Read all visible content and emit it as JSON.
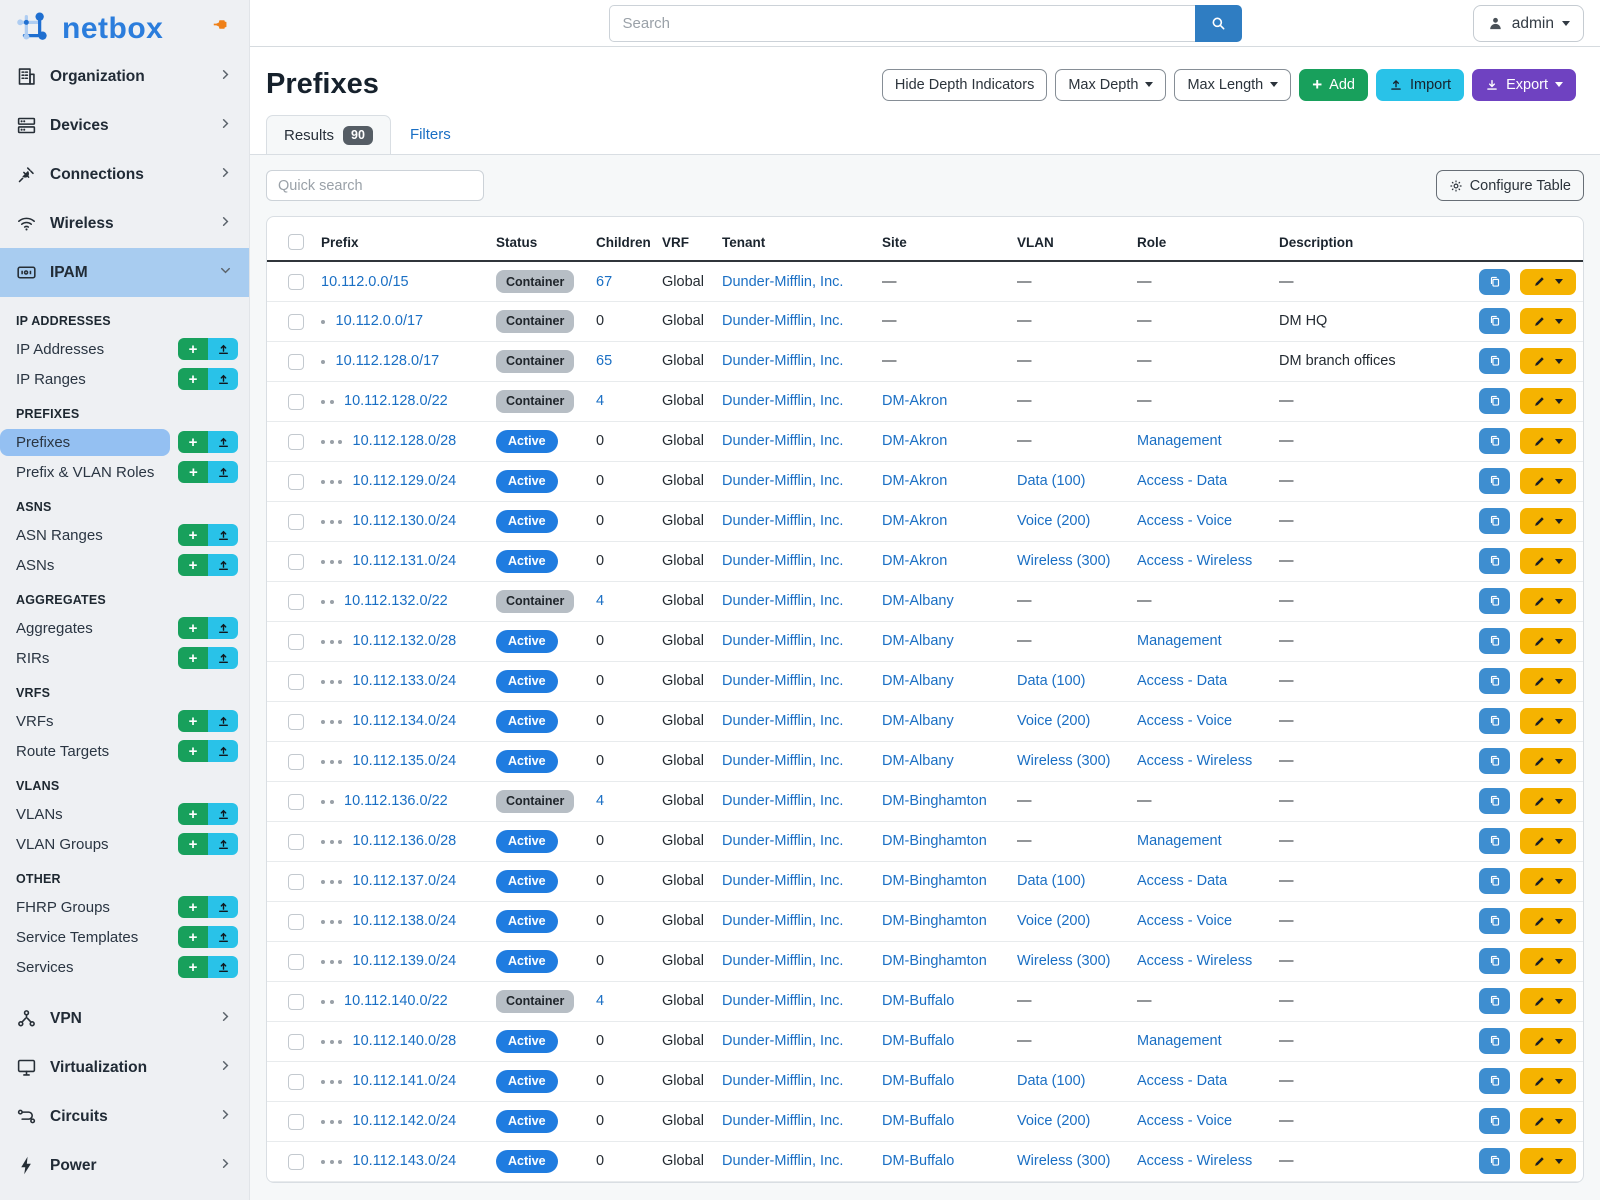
{
  "colors": {
    "link_blue": "#1a6fc4",
    "active_badge": "#1f7ce0",
    "container_badge": "#b7bec5",
    "add_green": "#18a05c",
    "import_cyan": "#29c2e8",
    "export_purple": "#6f42c1",
    "edit_yellow": "#f5b301",
    "copy_blue": "#3e8ed0",
    "sidebar_highlight": "#a8ccf0"
  },
  "topbar": {
    "search_placeholder": "Search",
    "user_label": "admin"
  },
  "sidebar": {
    "brand": "netbox",
    "top_items": [
      {
        "label": "Organization",
        "icon": "building-icon"
      },
      {
        "label": "Devices",
        "icon": "server-icon"
      },
      {
        "label": "Connections",
        "icon": "plug-icon"
      },
      {
        "label": "Wireless",
        "icon": "wifi-icon"
      }
    ],
    "ipam": {
      "label": "IPAM",
      "icon": "ipam-icon"
    },
    "sections": [
      {
        "title": "IP ADDRESSES",
        "items": [
          {
            "label": "IP Addresses"
          },
          {
            "label": "IP Ranges"
          }
        ]
      },
      {
        "title": "PREFIXES",
        "items": [
          {
            "label": "Prefixes",
            "active": true
          },
          {
            "label": "Prefix & VLAN Roles"
          }
        ]
      },
      {
        "title": "ASNS",
        "items": [
          {
            "label": "ASN Ranges"
          },
          {
            "label": "ASNs"
          }
        ]
      },
      {
        "title": "AGGREGATES",
        "items": [
          {
            "label": "Aggregates"
          },
          {
            "label": "RIRs"
          }
        ]
      },
      {
        "title": "VRFS",
        "items": [
          {
            "label": "VRFs"
          },
          {
            "label": "Route Targets"
          }
        ]
      },
      {
        "title": "VLANS",
        "items": [
          {
            "label": "VLANs"
          },
          {
            "label": "VLAN Groups"
          }
        ]
      },
      {
        "title": "OTHER",
        "items": [
          {
            "label": "FHRP Groups"
          },
          {
            "label": "Service Templates"
          },
          {
            "label": "Services"
          }
        ]
      }
    ],
    "bottom_items": [
      {
        "label": "VPN",
        "icon": "vpn-icon"
      },
      {
        "label": "Virtualization",
        "icon": "monitor-icon"
      },
      {
        "label": "Circuits",
        "icon": "circuit-icon"
      },
      {
        "label": "Power",
        "icon": "power-icon"
      }
    ]
  },
  "page": {
    "title": "Prefixes",
    "toolbar": {
      "hide_depth": "Hide Depth Indicators",
      "max_depth": "Max Depth",
      "max_length": "Max Length",
      "add": "Add",
      "import": "Import",
      "export": "Export"
    },
    "tabs": {
      "results": "Results",
      "results_count": "90",
      "filters": "Filters"
    },
    "quick_search_placeholder": "Quick search",
    "configure_table": "Configure Table"
  },
  "table": {
    "columns": [
      "Prefix",
      "Status",
      "Children",
      "VRF",
      "Tenant",
      "Site",
      "VLAN",
      "Role",
      "Description"
    ],
    "rows": [
      {
        "prefix": "10.112.0.0/15",
        "depth": 0,
        "status": "Container",
        "children": "67",
        "vrf": "Global",
        "tenant": "Dunder-Mifflin, Inc.",
        "site": "—",
        "vlan": "—",
        "role": "—",
        "description": "—"
      },
      {
        "prefix": "10.112.0.0/17",
        "depth": 1,
        "status": "Container",
        "children": "0",
        "vrf": "Global",
        "tenant": "Dunder-Mifflin, Inc.",
        "site": "—",
        "vlan": "—",
        "role": "—",
        "description": "DM HQ"
      },
      {
        "prefix": "10.112.128.0/17",
        "depth": 1,
        "status": "Container",
        "children": "65",
        "vrf": "Global",
        "tenant": "Dunder-Mifflin, Inc.",
        "site": "—",
        "vlan": "—",
        "role": "—",
        "description": "DM branch offices"
      },
      {
        "prefix": "10.112.128.0/22",
        "depth": 2,
        "status": "Container",
        "children": "4",
        "vrf": "Global",
        "tenant": "Dunder-Mifflin, Inc.",
        "site": "DM-Akron",
        "vlan": "—",
        "role": "—",
        "description": "—"
      },
      {
        "prefix": "10.112.128.0/28",
        "depth": 3,
        "status": "Active",
        "children": "0",
        "vrf": "Global",
        "tenant": "Dunder-Mifflin, Inc.",
        "site": "DM-Akron",
        "vlan": "—",
        "role": "Management",
        "description": "—"
      },
      {
        "prefix": "10.112.129.0/24",
        "depth": 3,
        "status": "Active",
        "children": "0",
        "vrf": "Global",
        "tenant": "Dunder-Mifflin, Inc.",
        "site": "DM-Akron",
        "vlan": "Data (100)",
        "role": "Access - Data",
        "description": "—"
      },
      {
        "prefix": "10.112.130.0/24",
        "depth": 3,
        "status": "Active",
        "children": "0",
        "vrf": "Global",
        "tenant": "Dunder-Mifflin, Inc.",
        "site": "DM-Akron",
        "vlan": "Voice (200)",
        "role": "Access - Voice",
        "description": "—"
      },
      {
        "prefix": "10.112.131.0/24",
        "depth": 3,
        "status": "Active",
        "children": "0",
        "vrf": "Global",
        "tenant": "Dunder-Mifflin, Inc.",
        "site": "DM-Akron",
        "vlan": "Wireless (300)",
        "role": "Access - Wireless",
        "description": "—"
      },
      {
        "prefix": "10.112.132.0/22",
        "depth": 2,
        "status": "Container",
        "children": "4",
        "vrf": "Global",
        "tenant": "Dunder-Mifflin, Inc.",
        "site": "DM-Albany",
        "vlan": "—",
        "role": "—",
        "description": "—"
      },
      {
        "prefix": "10.112.132.0/28",
        "depth": 3,
        "status": "Active",
        "children": "0",
        "vrf": "Global",
        "tenant": "Dunder-Mifflin, Inc.",
        "site": "DM-Albany",
        "vlan": "—",
        "role": "Management",
        "description": "—"
      },
      {
        "prefix": "10.112.133.0/24",
        "depth": 3,
        "status": "Active",
        "children": "0",
        "vrf": "Global",
        "tenant": "Dunder-Mifflin, Inc.",
        "site": "DM-Albany",
        "vlan": "Data (100)",
        "role": "Access - Data",
        "description": "—"
      },
      {
        "prefix": "10.112.134.0/24",
        "depth": 3,
        "status": "Active",
        "children": "0",
        "vrf": "Global",
        "tenant": "Dunder-Mifflin, Inc.",
        "site": "DM-Albany",
        "vlan": "Voice (200)",
        "role": "Access - Voice",
        "description": "—"
      },
      {
        "prefix": "10.112.135.0/24",
        "depth": 3,
        "status": "Active",
        "children": "0",
        "vrf": "Global",
        "tenant": "Dunder-Mifflin, Inc.",
        "site": "DM-Albany",
        "vlan": "Wireless (300)",
        "role": "Access - Wireless",
        "description": "—"
      },
      {
        "prefix": "10.112.136.0/22",
        "depth": 2,
        "status": "Container",
        "children": "4",
        "vrf": "Global",
        "tenant": "Dunder-Mifflin, Inc.",
        "site": "DM-Binghamton",
        "vlan": "—",
        "role": "—",
        "description": "—"
      },
      {
        "prefix": "10.112.136.0/28",
        "depth": 3,
        "status": "Active",
        "children": "0",
        "vrf": "Global",
        "tenant": "Dunder-Mifflin, Inc.",
        "site": "DM-Binghamton",
        "vlan": "—",
        "role": "Management",
        "description": "—"
      },
      {
        "prefix": "10.112.137.0/24",
        "depth": 3,
        "status": "Active",
        "children": "0",
        "vrf": "Global",
        "tenant": "Dunder-Mifflin, Inc.",
        "site": "DM-Binghamton",
        "vlan": "Data (100)",
        "role": "Access - Data",
        "description": "—"
      },
      {
        "prefix": "10.112.138.0/24",
        "depth": 3,
        "status": "Active",
        "children": "0",
        "vrf": "Global",
        "tenant": "Dunder-Mifflin, Inc.",
        "site": "DM-Binghamton",
        "vlan": "Voice (200)",
        "role": "Access - Voice",
        "description": "—"
      },
      {
        "prefix": "10.112.139.0/24",
        "depth": 3,
        "status": "Active",
        "children": "0",
        "vrf": "Global",
        "tenant": "Dunder-Mifflin, Inc.",
        "site": "DM-Binghamton",
        "vlan": "Wireless (300)",
        "role": "Access - Wireless",
        "description": "—"
      },
      {
        "prefix": "10.112.140.0/22",
        "depth": 2,
        "status": "Container",
        "children": "4",
        "vrf": "Global",
        "tenant": "Dunder-Mifflin, Inc.",
        "site": "DM-Buffalo",
        "vlan": "—",
        "role": "—",
        "description": "—"
      },
      {
        "prefix": "10.112.140.0/28",
        "depth": 3,
        "status": "Active",
        "children": "0",
        "vrf": "Global",
        "tenant": "Dunder-Mifflin, Inc.",
        "site": "DM-Buffalo",
        "vlan": "—",
        "role": "Management",
        "description": "—"
      },
      {
        "prefix": "10.112.141.0/24",
        "depth": 3,
        "status": "Active",
        "children": "0",
        "vrf": "Global",
        "tenant": "Dunder-Mifflin, Inc.",
        "site": "DM-Buffalo",
        "vlan": "Data (100)",
        "role": "Access - Data",
        "description": "—"
      },
      {
        "prefix": "10.112.142.0/24",
        "depth": 3,
        "status": "Active",
        "children": "0",
        "vrf": "Global",
        "tenant": "Dunder-Mifflin, Inc.",
        "site": "DM-Buffalo",
        "vlan": "Voice (200)",
        "role": "Access - Voice",
        "description": "—"
      },
      {
        "prefix": "10.112.143.0/24",
        "depth": 3,
        "status": "Active",
        "children": "0",
        "vrf": "Global",
        "tenant": "Dunder-Mifflin, Inc.",
        "site": "DM-Buffalo",
        "vlan": "Wireless (300)",
        "role": "Access - Wireless",
        "description": "—"
      }
    ]
  }
}
